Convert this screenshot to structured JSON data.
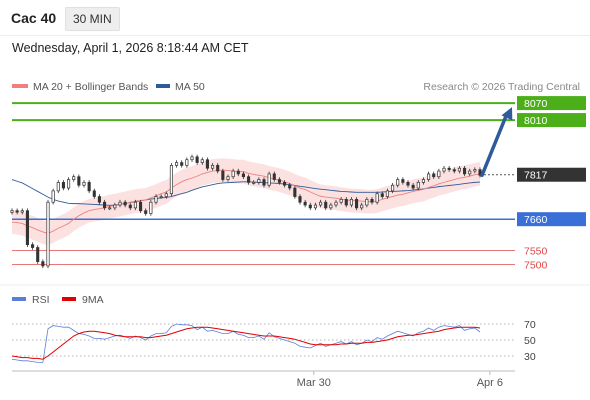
{
  "header": {
    "instrument": "Cac 40",
    "timeframe": "30 MIN",
    "datetime": "Wednesday, April 1, 2026 8:18:44 AM CET"
  },
  "legend": {
    "ma20_label": "MA 20 + Bollinger Bands",
    "ma50_label": "MA 50",
    "ma20_color": "#f08080",
    "ma50_color": "#2e5c9a",
    "credit": "Research © 2026 Trading Central"
  },
  "rsi_legend": {
    "rsi_label": "RSI",
    "ma9_label": "9MA",
    "rsi_color": "#5b7fd6",
    "ma9_color": "#e00000"
  },
  "x_axis": {
    "ticks": [
      {
        "label": "Mar 30",
        "x": 0.6
      },
      {
        "label": "Apr 6",
        "x": 0.95
      }
    ]
  },
  "chart_data": [
    {
      "type": "candlestick",
      "y_range": [
        7470,
        8095
      ],
      "levels": [
        {
          "value": 8070,
          "label": "8070",
          "color": "#4caf1a",
          "style": "solid-box"
        },
        {
          "value": 8010,
          "label": "8010",
          "color": "#4caf1a",
          "style": "solid-box"
        },
        {
          "value": 7817,
          "label": "7817",
          "color": "#333333",
          "style": "dotted-box"
        },
        {
          "value": 7660,
          "label": "7660",
          "color": "#3a6fd8",
          "style": "solid-box"
        },
        {
          "value": 7550,
          "label": "7550",
          "color": "#e04848",
          "style": "thin-text"
        },
        {
          "value": 7500,
          "label": "7500",
          "color": "#e04848",
          "style": "thin-text"
        }
      ],
      "closes": [
        7690,
        7685,
        7690,
        7570,
        7560,
        7510,
        7495,
        7720,
        7760,
        7790,
        7770,
        7800,
        7810,
        7780,
        7790,
        7760,
        7740,
        7720,
        7700,
        7700,
        7710,
        7720,
        7710,
        7700,
        7720,
        7690,
        7680,
        7720,
        7740,
        7740,
        7750,
        7850,
        7860,
        7850,
        7870,
        7880,
        7860,
        7870,
        7840,
        7850,
        7830,
        7800,
        7810,
        7830,
        7820,
        7810,
        7790,
        7790,
        7800,
        7780,
        7820,
        7800,
        7790,
        7780,
        7770,
        7740,
        7720,
        7710,
        7700,
        7710,
        7720,
        7700,
        7710,
        7720,
        7730,
        7710,
        7730,
        7700,
        7710,
        7730,
        7720,
        7750,
        7740,
        7760,
        7780,
        7800,
        7790,
        7780,
        7770,
        7790,
        7800,
        7820,
        7810,
        7830,
        7840,
        7835,
        7830,
        7840,
        7820,
        7830,
        7835,
        7815
      ],
      "ma20": [
        7650,
        7648,
        7645,
        7636,
        7630,
        7622,
        7615,
        7610,
        7618,
        7628,
        7636,
        7645,
        7660,
        7672,
        7682,
        7690,
        7694,
        7697,
        7700,
        7705,
        7708,
        7712,
        7716,
        7720,
        7724,
        7726,
        7728,
        7735,
        7742,
        7750,
        7756,
        7770,
        7782,
        7792,
        7800,
        7805,
        7812,
        7820,
        7825,
        7830,
        7832,
        7833,
        7832,
        7830,
        7828,
        7828,
        7822,
        7818,
        7815,
        7812,
        7806,
        7802,
        7798,
        7792,
        7786,
        7778,
        7770,
        7765,
        7756,
        7748,
        7741,
        7738,
        7736,
        7734,
        7731,
        7728,
        7726,
        7725,
        7724,
        7722,
        7722,
        7724,
        7730,
        7735,
        7740,
        7745,
        7748,
        7753,
        7758,
        7762,
        7765,
        7772,
        7778,
        7785,
        7790,
        7795,
        7800,
        7805,
        7808,
        7812,
        7817,
        7820
      ],
      "ma50": [
        7800,
        7794,
        7788,
        7778,
        7768,
        7758,
        7748,
        7738,
        7730,
        7724,
        7720,
        7716,
        7715,
        7715,
        7714,
        7713,
        7712,
        7711,
        7710,
        7709,
        7710,
        7713,
        7716,
        7719,
        7722,
        7725,
        7728,
        7731,
        7733,
        7735,
        7737,
        7740,
        7745,
        7750,
        7755,
        7762,
        7768,
        7774,
        7778,
        7782,
        7786,
        7788,
        7789,
        7790,
        7791,
        7792,
        7792,
        7791,
        7790,
        7789,
        7788,
        7787,
        7786,
        7784,
        7782,
        7779,
        7776,
        7774,
        7771,
        7768,
        7766,
        7764,
        7762,
        7760,
        7758,
        7757,
        7756,
        7755,
        7755,
        7755,
        7755,
        7755,
        7756,
        7757,
        7758,
        7759,
        7760,
        7761,
        7763,
        7765,
        7767,
        7770,
        7772,
        7775,
        7777,
        7779,
        7781,
        7783,
        7786,
        7788,
        7790,
        7791
      ]
    },
    {
      "type": "line",
      "y_range": [
        15,
        80
      ],
      "levels": [
        {
          "value": 70,
          "label": "70"
        },
        {
          "value": 50,
          "label": "50"
        },
        {
          "value": 30,
          "label": "30"
        }
      ],
      "series": [
        {
          "name": "RSI",
          "color": "#5b7fd6",
          "values": [
            26,
            25,
            24,
            24,
            23,
            22,
            22,
            64,
            68,
            67,
            66,
            66,
            62,
            58,
            57,
            55,
            52,
            52,
            51,
            53,
            55,
            56,
            54,
            52,
            55,
            53,
            50,
            55,
            58,
            58,
            59,
            67,
            70,
            69,
            69,
            68,
            63,
            66,
            61,
            62,
            60,
            58,
            58,
            61,
            57,
            56,
            53,
            53,
            55,
            51,
            59,
            54,
            52,
            50,
            48,
            46,
            42,
            41,
            40,
            43,
            46,
            42,
            44,
            46,
            48,
            45,
            48,
            44,
            46,
            50,
            48,
            53,
            51,
            55,
            58,
            61,
            59,
            57,
            55,
            59,
            61,
            65,
            62,
            66,
            68,
            67,
            66,
            68,
            62,
            64,
            65,
            60
          ]
        },
        {
          "name": "9MA",
          "color": "#e00000",
          "values": [
            30,
            29,
            28,
            28,
            27,
            27,
            26,
            30,
            35,
            40,
            45,
            50,
            55,
            58,
            60,
            61,
            61,
            60,
            59,
            58,
            56,
            55,
            54,
            54,
            54,
            54,
            53,
            53,
            54,
            55,
            56,
            58,
            60,
            62,
            64,
            65,
            66,
            66,
            66,
            65,
            64,
            63,
            62,
            61,
            60,
            59,
            58,
            57,
            56,
            55,
            55,
            55,
            54,
            53,
            52,
            51,
            49,
            47,
            45,
            44,
            44,
            44,
            44,
            44,
            45,
            45,
            46,
            46,
            46,
            47,
            47,
            48,
            49,
            50,
            52,
            54,
            55,
            56,
            56,
            57,
            58,
            59,
            60,
            61,
            63,
            64,
            65,
            66,
            66,
            66,
            66,
            65
          ]
        }
      ]
    }
  ]
}
